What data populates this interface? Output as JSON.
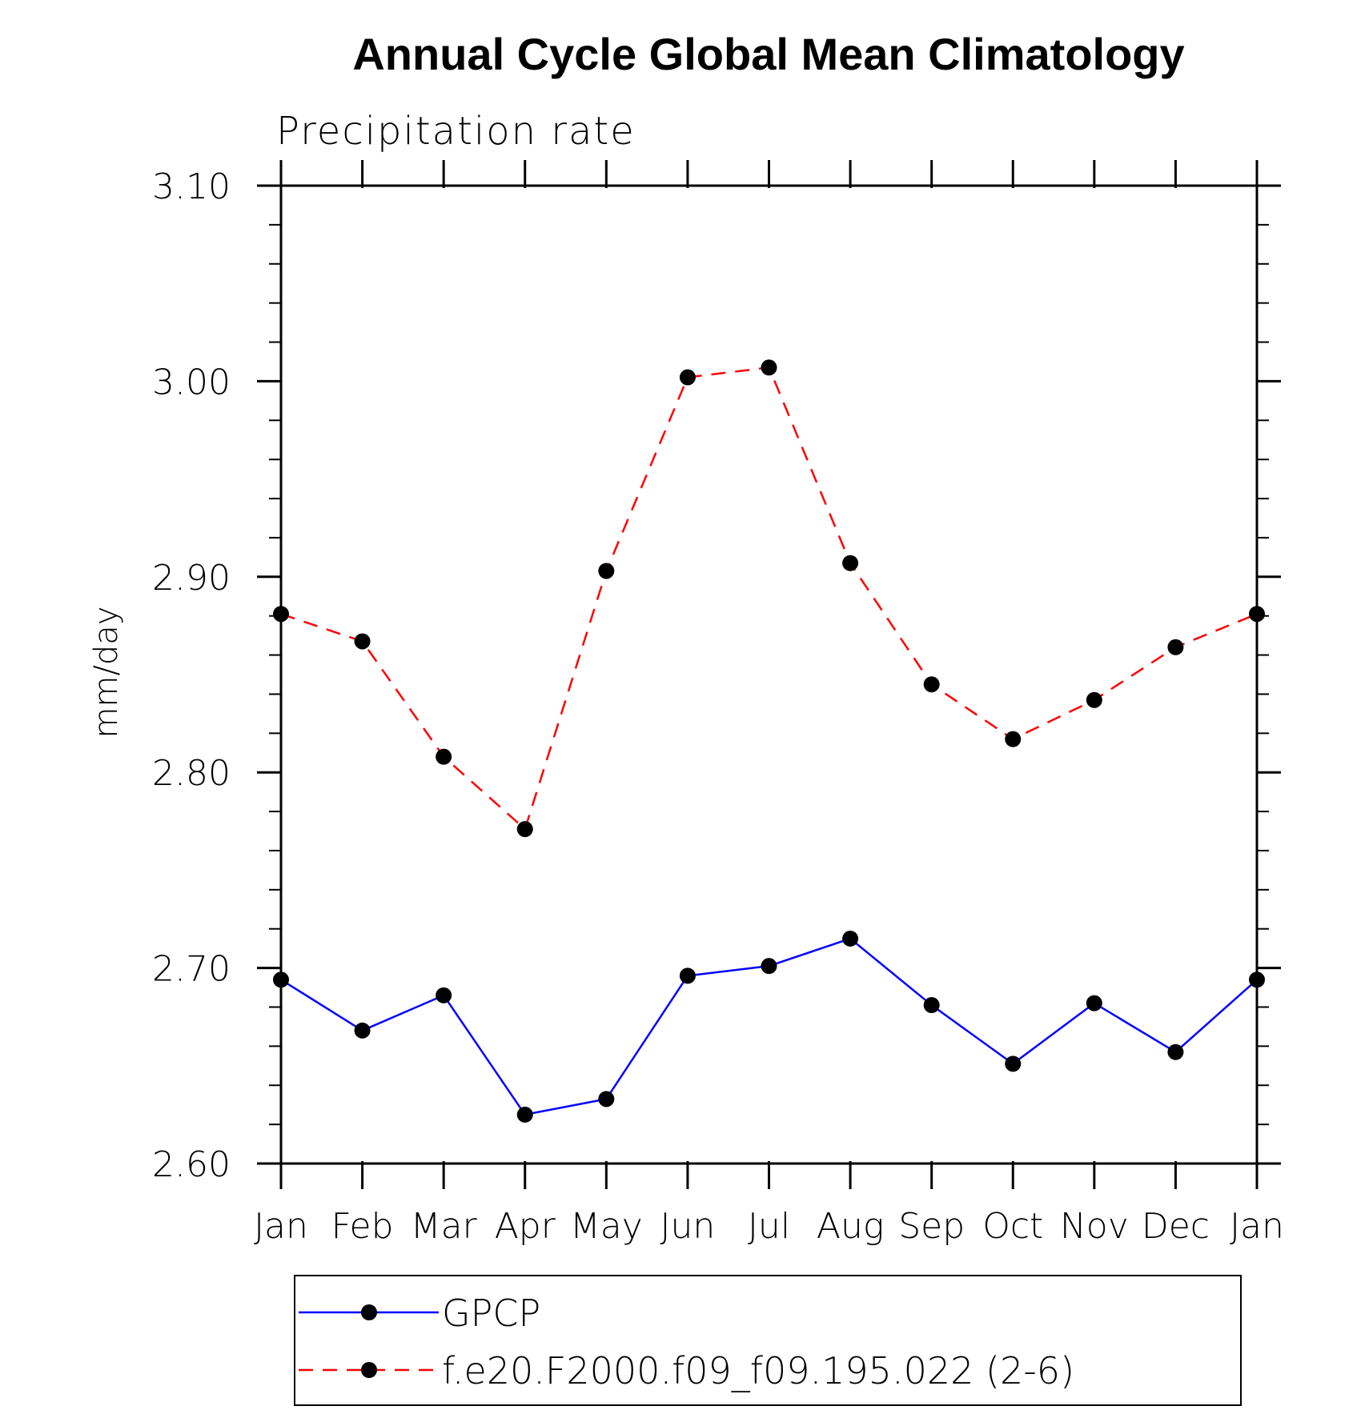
{
  "chart_data": {
    "type": "line",
    "title": "Annual Cycle Global Mean Climatology",
    "subtitle": "Precipitation rate",
    "ylabel": "mm/day",
    "xlabel": "",
    "categories": [
      "Jan",
      "Feb",
      "Mar",
      "Apr",
      "May",
      "Jun",
      "Jul",
      "Aug",
      "Sep",
      "Oct",
      "Nov",
      "Dec",
      "Jan"
    ],
    "ylim": [
      2.6,
      3.1
    ],
    "yticks": [
      "2.60",
      "2.70",
      "2.80",
      "2.90",
      "3.00",
      "3.10"
    ],
    "grid": false,
    "legend_position": "bottom",
    "series": [
      {
        "name": "GPCP",
        "color": "#0000ff",
        "style": "solid",
        "marker": "filled-circle",
        "values": [
          2.694,
          2.668,
          2.686,
          2.625,
          2.633,
          2.696,
          2.701,
          2.715,
          2.681,
          2.651,
          2.682,
          2.657,
          2.694
        ]
      },
      {
        "name": "f.e20.F2000.f09_f09.195.022 (2-6)",
        "color": "#ff0000",
        "style": "dashed",
        "marker": "filled-circle",
        "values": [
          2.881,
          2.867,
          2.808,
          2.771,
          2.903,
          3.002,
          3.007,
          2.907,
          2.845,
          2.817,
          2.837,
          2.864,
          2.881
        ]
      }
    ]
  }
}
